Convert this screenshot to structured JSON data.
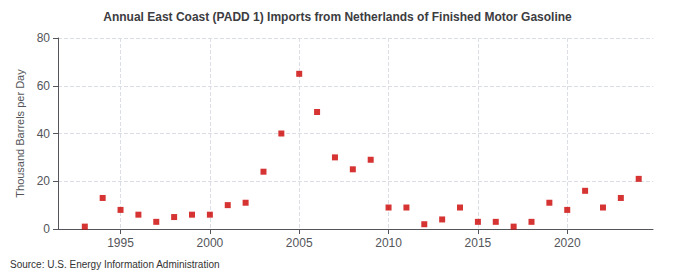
{
  "chart_data": {
    "type": "scatter",
    "title": "Annual East Coast (PADD 1) Imports from Netherlands of Finished Motor Gasoline",
    "ylabel": "Thousand Barrels per Day",
    "annotation": "Source: U.S. Energy Information Administration",
    "x": [
      1993,
      1994,
      1995,
      1996,
      1997,
      1998,
      1999,
      2000,
      2001,
      2002,
      2003,
      2004,
      2005,
      2006,
      2007,
      2008,
      2009,
      2010,
      2011,
      2012,
      2013,
      2014,
      2015,
      2016,
      2017,
      2018,
      2019,
      2020,
      2021,
      2022,
      2023,
      2024
    ],
    "values": [
      1,
      13,
      8,
      6,
      3,
      5,
      6,
      6,
      10,
      11,
      24,
      40,
      65,
      49,
      30,
      25,
      29,
      9,
      9,
      2,
      4,
      9,
      3,
      3,
      1,
      3,
      11,
      8,
      16,
      9,
      13,
      21
    ],
    "color": "#cc0000",
    "marker": "square",
    "xlim": [
      1991.5,
      2024.8
    ],
    "xticks": [
      1995,
      2000,
      2005,
      2010,
      2015,
      2020
    ],
    "ylim": [
      0,
      80
    ],
    "yticks": [
      0,
      20,
      40,
      60,
      80
    ],
    "grid": true
  }
}
